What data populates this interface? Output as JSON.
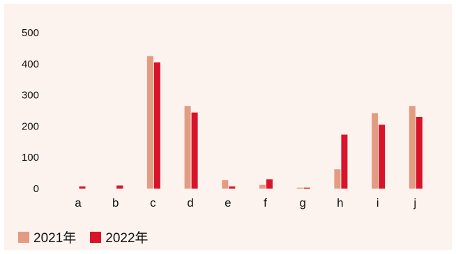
{
  "chart_data": {
    "type": "bar",
    "categories": [
      "a",
      "b",
      "c",
      "d",
      "e",
      "f",
      "g",
      "h",
      "i",
      "j"
    ],
    "series": [
      {
        "name": "2021年",
        "color": "#e39c82",
        "values": [
          0,
          0,
          425,
          265,
          27,
          12,
          3,
          62,
          242,
          265
        ]
      },
      {
        "name": "2022年",
        "color": "#d7142a",
        "values": [
          7,
          10,
          405,
          244,
          7,
          30,
          3,
          173,
          205,
          230
        ]
      }
    ],
    "yticks": [
      "0",
      "100",
      "200",
      "300",
      "400",
      "500"
    ],
    "ylim": [
      0,
      500
    ],
    "grid": false,
    "legend_position": "bottom-left"
  }
}
